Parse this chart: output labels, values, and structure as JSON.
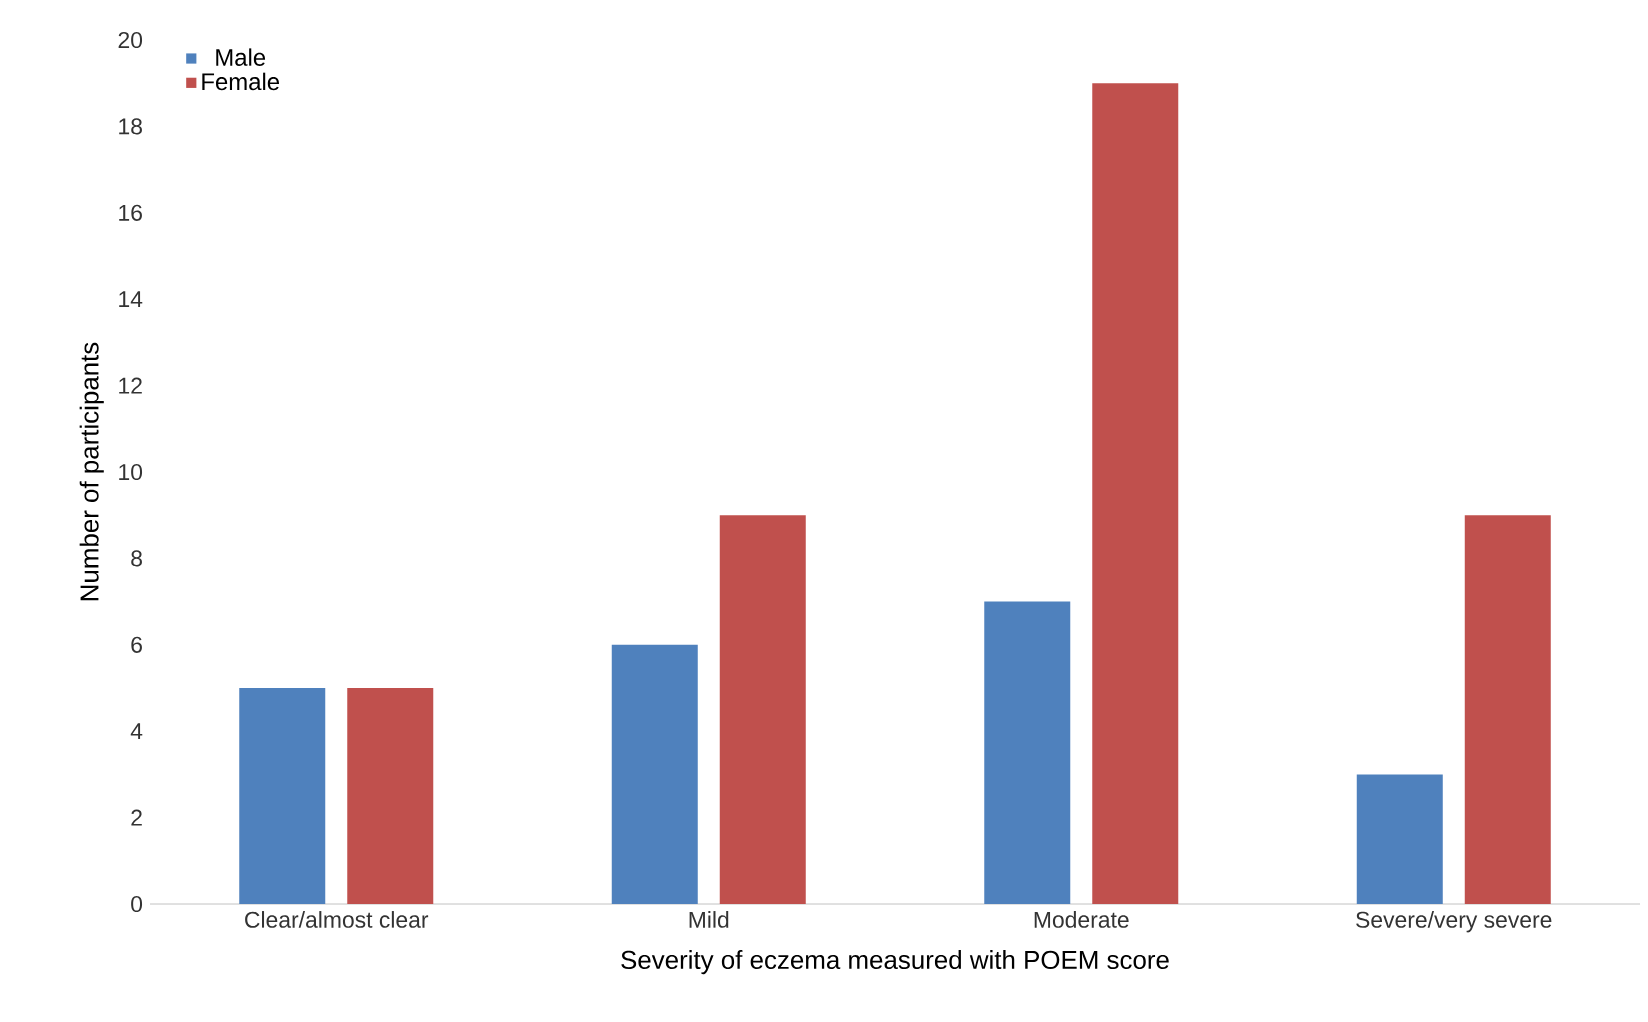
{
  "chart_data": {
    "type": "bar",
    "xlabel": "Severity of eczema measured with POEM score",
    "ylabel": "Number of participants",
    "categories": [
      "Clear/almost clear",
      "Mild",
      "Moderate",
      "Severe/very severe"
    ],
    "series": [
      {
        "name": "Male",
        "color": "#4f81bd",
        "values": [
          5,
          6,
          7,
          3
        ]
      },
      {
        "name": "Female",
        "color": "#c0504d",
        "values": [
          5,
          9,
          19,
          9
        ]
      }
    ],
    "ylim": [
      0,
      20
    ],
    "yticks": [
      0,
      2,
      4,
      6,
      8,
      10,
      12,
      14,
      16,
      18,
      20
    ],
    "legend": "top left"
  }
}
